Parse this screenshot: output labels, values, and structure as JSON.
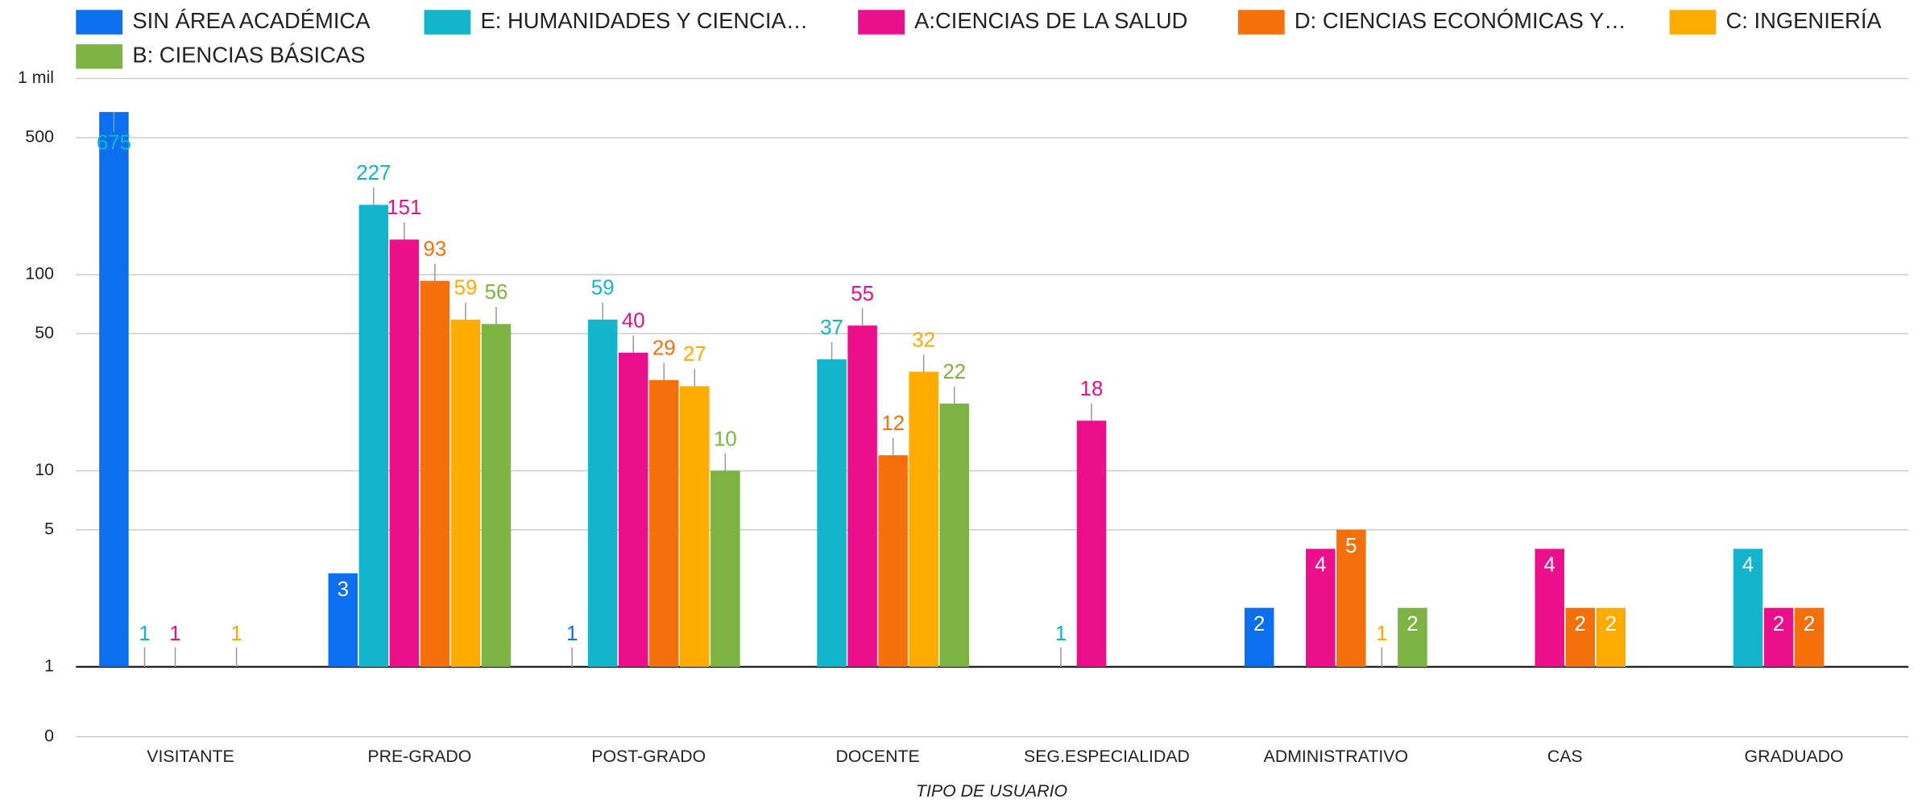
{
  "chart_data": {
    "type": "bar",
    "log_scale": true,
    "x_label": "TIPO DE USUARIO",
    "categories": [
      "VISITANTE",
      "PRE-GRADO",
      "POST-GRADO",
      "DOCENTE",
      "SEG.ESPECIALIDAD",
      "ADMINISTRATIVO",
      "CAS",
      "GRADUADO"
    ],
    "series": [
      {
        "name": "SIN ÁREA ACADÉMICA",
        "color": "#0b6ff0",
        "values": [
          675,
          3,
          1,
          null,
          null,
          2,
          null,
          null
        ]
      },
      {
        "name": "E: HUMANIDADES Y CIENCIA…",
        "color": "#12b5cb",
        "values": [
          1,
          227,
          59,
          37,
          1,
          null,
          null,
          4
        ]
      },
      {
        "name": "A:CIENCIAS DE LA SALUD",
        "color": "#ec0f8c",
        "values": [
          1,
          151,
          40,
          55,
          18,
          4,
          4,
          2
        ]
      },
      {
        "name": "D: CIENCIAS ECONÓMICAS Y…",
        "color": "#f56f0a",
        "values": [
          null,
          93,
          29,
          12,
          null,
          5,
          2,
          2
        ]
      },
      {
        "name": "C: INGENIERÍA",
        "color": "#ffab00",
        "values": [
          1,
          59,
          27,
          32,
          null,
          1,
          2,
          null
        ]
      },
      {
        "name": "B: CIENCIAS BÁSICAS",
        "color": "#7cb342",
        "values": [
          null,
          56,
          10,
          22,
          null,
          2,
          null,
          null
        ]
      }
    ],
    "ylim": [
      0,
      1000
    ],
    "yticks": [
      0,
      1,
      5,
      10,
      50,
      100,
      500,
      {
        "value": 1000,
        "label": "1 mil"
      }
    ],
    "grid": true
  }
}
